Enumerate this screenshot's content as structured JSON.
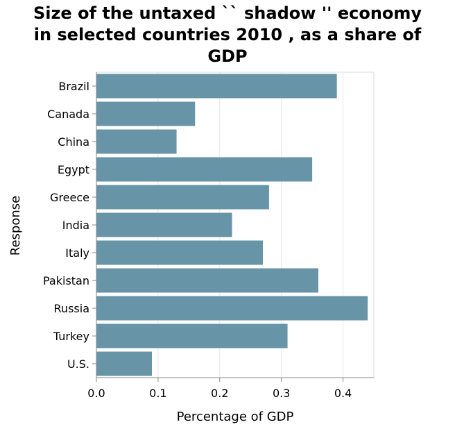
{
  "chart_data": {
    "type": "bar",
    "orientation": "horizontal",
    "title_lines": [
      "Size of the untaxed `` shadow '' economy",
      "in selected countries 2010 , as a share of",
      "GDP"
    ],
    "xlabel": "Percentage of GDP",
    "ylabel": "Response",
    "categories": [
      "Brazil",
      "Canada",
      "China",
      "Egypt",
      "Greece",
      "India",
      "Italy",
      "Pakistan",
      "Russia",
      "Turkey",
      "U.S."
    ],
    "values": [
      0.39,
      0.16,
      0.13,
      0.35,
      0.28,
      0.22,
      0.27,
      0.36,
      0.44,
      0.31,
      0.09
    ],
    "xlim": [
      0,
      0.45
    ],
    "xticks": [
      "0.0",
      "0.1",
      "0.2",
      "0.3",
      "0.4"
    ],
    "grid": true,
    "bar_color": "#6794a7"
  }
}
